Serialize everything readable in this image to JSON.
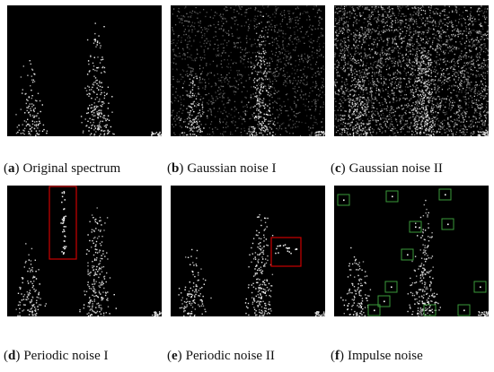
{
  "panels": [
    {
      "open": "(",
      "letter": "a",
      "close": ")",
      "caption": "Original spectrum"
    },
    {
      "open": "(",
      "letter": "b",
      "close": ")",
      "caption": "Gaussian noise I"
    },
    {
      "open": "(",
      "letter": "c",
      "close": ")",
      "caption": "Gaussian noise II"
    },
    {
      "open": "(",
      "letter": "d",
      "close": ")",
      "caption": "Periodic noise I"
    },
    {
      "open": "(",
      "letter": "e",
      "close": ")",
      "caption": "Periodic noise II"
    },
    {
      "open": "(",
      "letter": "f",
      "close": ")",
      "caption": "Impulse noise"
    }
  ]
}
